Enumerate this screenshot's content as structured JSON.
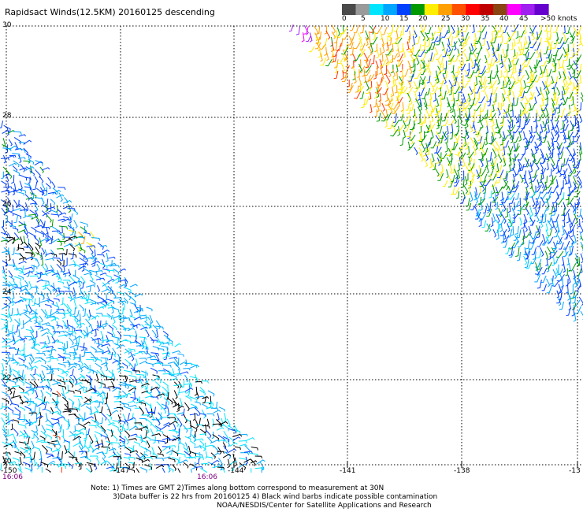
{
  "title": "Rapidsact Winds(12.5KM) 20160125 descending",
  "legend": {
    "labels": [
      "0",
      "5",
      "10",
      "15",
      "20",
      "25",
      "30",
      "35",
      "40",
      "45",
      ">50 knots"
    ],
    "colors": [
      "#4a4a4a",
      "#9a9a9a",
      "#00e5ff",
      "#00a6ff",
      "#0040ff",
      "#009a00",
      "#ffee00",
      "#ffa000",
      "#ff5000",
      "#ff0000",
      "#c00000",
      "#8b4513",
      "#ff00ff",
      "#a020f0",
      "#6600cc"
    ]
  },
  "map": {
    "lat_labels": [
      "30",
      "28",
      "26",
      "24",
      "22",
      "20"
    ],
    "lon_labels": [
      "-150",
      "-147",
      "-144",
      "-141",
      "-138",
      "-13"
    ],
    "time_labels": [
      "16:06",
      "16:06"
    ],
    "barb_colors": {
      "contaminated": "#000000",
      "cyan": "#00e5ff",
      "lightblue": "#00a6ff",
      "blue": "#0040ff",
      "green": "#009a00",
      "yellow": "#ffee00",
      "orange": "#ffa000",
      "red": "#ff3000"
    }
  },
  "notes": [
    "Note: 1) Times are GMT 2)Times along bottom correspond to measurement at 30N",
    "3)Data buffer is 22 hrs from 20160125 4) Black wind barbs indicate possible contamination",
    "NOAA/NESDIS/Center for Satellite Applications and Research"
  ]
}
